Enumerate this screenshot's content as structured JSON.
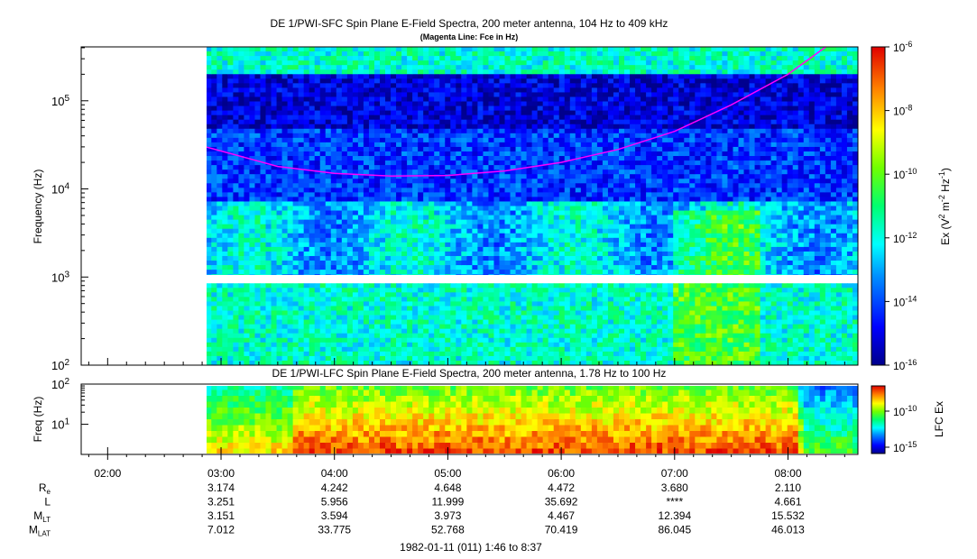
{
  "title": "DE 1/PWI-SFC  Spin Plane E-Field Spectra, 200 meter antenna, 104 Hz to 409 kHz",
  "subtitle": "(Magenta Line: Fce in Hz)",
  "chart_data": [
    {
      "type": "heatmap",
      "title": "DE 1/PWI-SFC  Spin Plane E-Field Spectra, 200 meter antenna, 104 Hz to 409 kHz",
      "subtitle": "(Magenta Line: Fce in Hz)",
      "ylabel": "Frequency (Hz)",
      "yscale": "log",
      "ylim": [
        100,
        409000
      ],
      "ytick_labels": [
        {
          "base": "10",
          "exp": "2"
        },
        {
          "base": "10",
          "exp": "3"
        },
        {
          "base": "10",
          "exp": "4"
        },
        {
          "base": "10",
          "exp": "5"
        }
      ],
      "data_start_time": "02:52",
      "colorbar": {
        "label": "Ex (V",
        "label_parts": [
          "Ex (V",
          "2",
          " m",
          "-2",
          " Hz",
          "-1",
          ")"
        ],
        "scale": "log",
        "range": [
          1e-16,
          1e-06
        ],
        "tick_labels": [
          {
            "base": "10",
            "exp": "-6"
          },
          {
            "base": "10",
            "exp": "-8"
          },
          {
            "base": "10",
            "exp": "-10"
          },
          {
            "base": "10",
            "exp": "-12"
          },
          {
            "base": "10",
            "exp": "-14"
          },
          {
            "base": "10",
            "exp": "-16"
          }
        ]
      },
      "overlay_line": {
        "name": "Fce",
        "color": "#ff00ff",
        "time": [
          "02:52",
          "03:30",
          "04:00",
          "04:30",
          "05:00",
          "05:30",
          "06:00",
          "06:30",
          "07:00",
          "07:30",
          "08:00",
          "08:20"
        ],
        "freq_hz": [
          30000,
          18000,
          15000,
          14000,
          14200,
          16000,
          20000,
          28000,
          45000,
          90000,
          200000,
          409000
        ]
      }
    },
    {
      "type": "heatmap",
      "title": "DE 1/PWI-LFC  Spin Plane E-Field Spectra, 200 meter antenna, 1.78 Hz to 100 Hz",
      "ylabel": "Freq (Hz)",
      "yscale": "log",
      "ylim": [
        1.78,
        100
      ],
      "ytick_labels": [
        {
          "base": "10",
          "exp": "1"
        },
        {
          "base": "10",
          "exp": "2"
        }
      ],
      "colorbar": {
        "label": "LFC Ex",
        "scale": "log",
        "tick_labels": [
          {
            "base": "10",
            "exp": "-10"
          },
          {
            "base": "10",
            "exp": "-15"
          }
        ]
      }
    }
  ],
  "x_axis": {
    "tick_labels": [
      "02:00",
      "03:00",
      "04:00",
      "05:00",
      "06:00",
      "07:00",
      "08:00"
    ],
    "tick_minutes": [
      120,
      180,
      240,
      300,
      360,
      420,
      480
    ],
    "xlim_minutes": [
      106,
      517
    ]
  },
  "ephemeris": {
    "rows": [
      {
        "label": "R",
        "sub": "e",
        "values": [
          "3.174",
          "4.242",
          "4.648",
          "4.472",
          "3.680",
          "2.110"
        ]
      },
      {
        "label": "L",
        "sub": "",
        "values": [
          "3.251",
          "5.956",
          "11.999",
          "35.692",
          "****",
          "4.661"
        ]
      },
      {
        "label": "M",
        "sub": "LT",
        "values": [
          "3.151",
          "3.594",
          "3.973",
          "4.467",
          "12.394",
          "15.532"
        ]
      },
      {
        "label": "M",
        "sub": "LAT",
        "values": [
          "7.012",
          "33.775",
          "52.768",
          "70.419",
          "86.045",
          "46.013"
        ]
      }
    ]
  },
  "footer": "1982-01-11 (011) 1:46 to 8:37"
}
